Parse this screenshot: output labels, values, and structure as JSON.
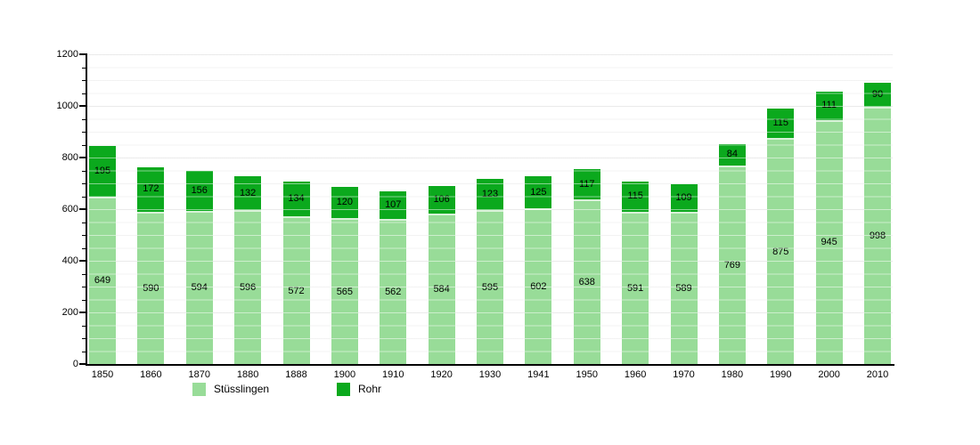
{
  "chart_data": {
    "type": "bar",
    "stacked": true,
    "title": "",
    "categories": [
      "1850",
      "1860",
      "1870",
      "1880",
      "1888",
      "1900",
      "1910",
      "1920",
      "1930",
      "1941",
      "1950",
      "1960",
      "1970",
      "1980",
      "1990",
      "2000",
      "2010"
    ],
    "series": [
      {
        "name": "Stüsslingen",
        "color": "#98dc98",
        "values": [
          649,
          590,
          594,
          596,
          572,
          565,
          562,
          584,
          595,
          602,
          638,
          591,
          589,
          769,
          875,
          945,
          998
        ]
      },
      {
        "name": "Rohr",
        "color": "#0ba91d",
        "values": [
          195,
          172,
          156,
          132,
          134,
          120,
          107,
          106,
          123,
          125,
          117,
          115,
          109,
          84,
          115,
          111,
          90
        ]
      }
    ],
    "ylim": [
      0,
      1200
    ],
    "y_ticks": [
      "0",
      "200",
      "400",
      "600",
      "800",
      "1000",
      "1200"
    ],
    "y_minor_step": 50,
    "grid": "horizontal",
    "legend_position": "bottom",
    "bar_value_labels": true,
    "value_label_color": "#000000",
    "background_color": "#ffffff"
  }
}
